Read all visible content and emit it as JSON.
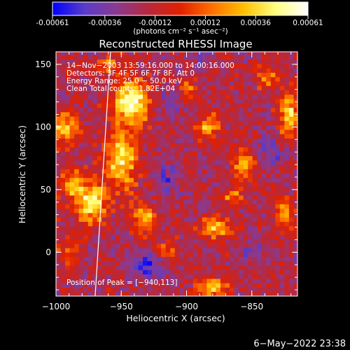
{
  "colorbar": {
    "ticks": [
      "-0.00061",
      "-0.00036",
      "-0.00012",
      "0.00012",
      "0.00036",
      "0.00061"
    ],
    "unit_label": "(photons cm⁻² s⁻¹ asec⁻²)",
    "stops": [
      "#0000ff",
      "#5a3cc8",
      "#8a3a90",
      "#b8283c",
      "#e02000",
      "#ff7000",
      "#ffc000",
      "#ffff80",
      "#ffffff"
    ],
    "min": -0.00061,
    "max": 0.00061
  },
  "chart_data": {
    "type": "heatmap",
    "title": "Reconstructed RHESSI Image",
    "xlabel": "Heliocentric X (arcsec)",
    "ylabel": "Heliocentric Y (arcsec)",
    "xlim": [
      -1000,
      -815
    ],
    "ylim": [
      -35,
      160
    ],
    "x_ticks": [
      {
        "value": -1000,
        "label": "−1000"
      },
      {
        "value": -950,
        "label": "−950"
      },
      {
        "value": -900,
        "label": "−900"
      },
      {
        "value": -850,
        "label": "−850"
      }
    ],
    "y_ticks": [
      {
        "value": 0,
        "label": "0"
      },
      {
        "value": 50,
        "label": "50"
      },
      {
        "value": 100,
        "label": "100"
      },
      {
        "value": 150,
        "label": "150"
      }
    ],
    "annotations": [
      "14−Nov−2003 13:59:16.000 to 14:00:16.000",
      "Detectors: 3F 4F 5F 6F 7F 8F, Att 0",
      "Energy Range: 25.0 − 50.0 keV",
      "Clean     Total counts: 1.82E+04"
    ],
    "peak_label": "Position of Peak = [−940,113]",
    "peak": [
      -940,
      113
    ],
    "limb_x": -970,
    "grid": false,
    "hot_spots": [
      {
        "x": -942,
        "y": 120,
        "amp": 1.0,
        "sx": 9,
        "sy": 12
      },
      {
        "x": -950,
        "y": 75,
        "amp": 0.8,
        "sx": 8,
        "sy": 16
      },
      {
        "x": -973,
        "y": 40,
        "amp": 0.85,
        "sx": 8,
        "sy": 12
      },
      {
        "x": -993,
        "y": 100,
        "amp": 0.65,
        "sx": 7,
        "sy": 9
      },
      {
        "x": -988,
        "y": 55,
        "amp": 0.55,
        "sx": 6,
        "sy": 8
      },
      {
        "x": -932,
        "y": 30,
        "amp": 0.65,
        "sx": 6,
        "sy": 10
      },
      {
        "x": -883,
        "y": 100,
        "amp": 0.55,
        "sx": 6,
        "sy": 7
      },
      {
        "x": -877,
        "y": 20,
        "amp": 0.6,
        "sx": 8,
        "sy": 6
      },
      {
        "x": -855,
        "y": 70,
        "amp": 0.6,
        "sx": 6,
        "sy": 8
      },
      {
        "x": -822,
        "y": 110,
        "amp": 0.75,
        "sx": 5,
        "sy": 12
      },
      {
        "x": -838,
        "y": 140,
        "amp": 0.5,
        "sx": 5,
        "sy": 7
      },
      {
        "x": -900,
        "y": 130,
        "amp": 0.45,
        "sx": 5,
        "sy": 6
      },
      {
        "x": -915,
        "y": 0,
        "amp": 0.35,
        "sx": 6,
        "sy": 6
      },
      {
        "x": -880,
        "y": -28,
        "amp": 0.75,
        "sx": 8,
        "sy": 5
      },
      {
        "x": -825,
        "y": 30,
        "amp": 0.6,
        "sx": 5,
        "sy": 8
      },
      {
        "x": -992,
        "y": 0,
        "amp": 0.35,
        "sx": 6,
        "sy": 7
      },
      {
        "x": -865,
        "y": 45,
        "amp": 0.45,
        "sx": 5,
        "sy": 6
      },
      {
        "x": -960,
        "y": 150,
        "amp": 0.4,
        "sx": 6,
        "sy": 6
      }
    ],
    "cold_spots": [
      {
        "x": -930,
        "y": -10,
        "amp": 0.7,
        "sx": 9,
        "sy": 8
      },
      {
        "x": -912,
        "y": 120,
        "amp": 0.6,
        "sx": 7,
        "sy": 8
      },
      {
        "x": -835,
        "y": 80,
        "amp": 0.6,
        "sx": 6,
        "sy": 10
      },
      {
        "x": -915,
        "y": 60,
        "amp": 0.5,
        "sx": 7,
        "sy": 9
      },
      {
        "x": -850,
        "y": 0,
        "amp": 0.5,
        "sx": 6,
        "sy": 7
      },
      {
        "x": -890,
        "y": 155,
        "amp": 0.45,
        "sx": 7,
        "sy": 5
      },
      {
        "x": -930,
        "y": 40,
        "amp": 0.45,
        "sx": 5,
        "sy": 6
      }
    ]
  },
  "footer": {
    "date": "6−May−2022 23:38"
  }
}
